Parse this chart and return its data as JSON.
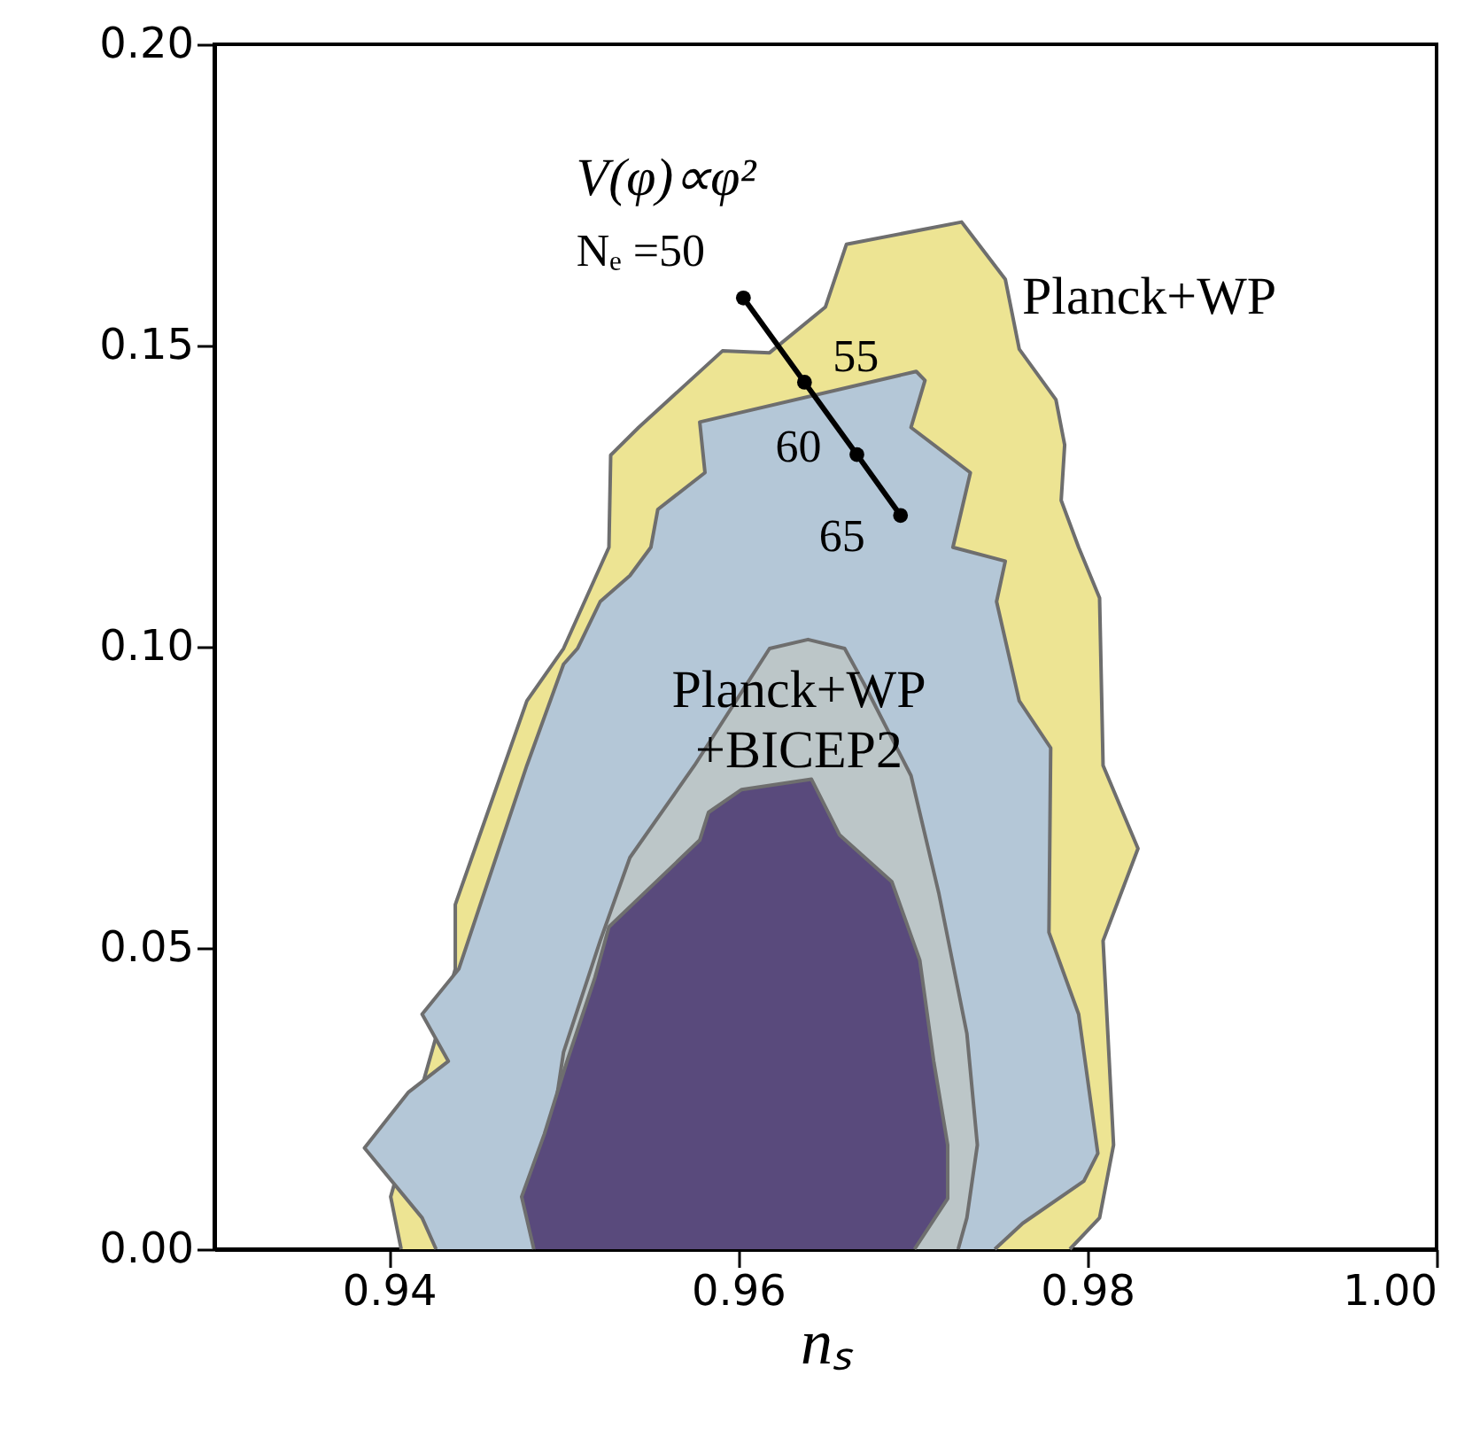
{
  "chart_data": {
    "type": "line",
    "xlabel": "nₛ",
    "xlim": [
      0.93,
      1.0
    ],
    "xticks": [
      0.94,
      0.96,
      0.98,
      {
        "value": 1.0,
        "label": "1.00"
      }
    ],
    "ylim": [
      0,
      0.2
    ],
    "yticks": [
      {
        "value": 0,
        "label": "0.00"
      },
      0.05,
      {
        "value": 0.1,
        "label": "0.10"
      },
      0.15,
      {
        "value": 0.2,
        "label": "0.20"
      }
    ],
    "series": [
      {
        "name": "Planck+WP",
        "type": "area",
        "color": "#ede493",
        "x": [
          0.9407,
          0.9401,
          0.9438,
          0.9438,
          0.9451,
          0.9479,
          0.95,
          0.9526,
          0.9527,
          0.9543,
          0.9591,
          0.9618,
          0.965,
          0.9662,
          0.9728,
          0.9753,
          0.9761,
          0.9782,
          0.9787,
          0.9785,
          0.9795,
          0.9807,
          0.9809,
          0.9829,
          0.9809,
          0.9815,
          0.9807,
          0.979
        ],
        "values": [
          0,
          0.0087,
          0.0465,
          0.0572,
          0.0679,
          0.091,
          0.0997,
          0.1165,
          0.1318,
          0.1364,
          0.1491,
          0.1488,
          0.1564,
          0.1668,
          0.1705,
          0.161,
          0.1494,
          0.141,
          0.1335,
          0.1243,
          0.1165,
          0.1081,
          0.0803,
          0.0665,
          0.0512,
          0.0173,
          0.0052,
          0
        ]
      },
      {
        "name": "Planck+WP\n+BICEP2",
        "type": "area",
        "color": "#b4c7d7",
        "x": [
          0.9427,
          0.9419,
          0.9386,
          0.9411,
          0.9434,
          0.9419,
          0.944,
          0.9456,
          0.9479,
          0.95,
          0.9508,
          0.9521,
          0.9538,
          0.955,
          0.9554,
          0.9581,
          0.9578,
          0.9702,
          0.9707,
          0.9699,
          0.9733,
          0.9723,
          0.9753,
          0.9748,
          0.9761,
          0.9779,
          0.9778,
          0.9795,
          0.9806,
          0.9798,
          0.9763,
          0.9747
        ],
        "values": [
          0,
          0.0052,
          0.0168,
          0.026,
          0.0312,
          0.039,
          0.0465,
          0.0604,
          0.0803,
          0.0971,
          0.0997,
          0.1075,
          0.1118,
          0.1165,
          0.1228,
          0.1289,
          0.1373,
          0.1457,
          0.1442,
          0.1364,
          0.1289,
          0.1165,
          0.1142,
          0.1075,
          0.091,
          0.0832,
          0.0526,
          0.039,
          0.0159,
          0.0113,
          0.0043,
          0
        ]
      },
      {
        "type": "area",
        "color": "#bcc6c8",
        "x": [
          0.9483,
          0.95,
          0.9521,
          0.9538,
          0.9575,
          0.9618,
          0.964,
          0.9661,
          0.9672,
          0.9699,
          0.9715,
          0.9731,
          0.9737,
          0.9731,
          0.9726
        ],
        "values": [
          0,
          0.0327,
          0.0512,
          0.065,
          0.0803,
          0.0997,
          0.1012,
          0.0997,
          0.0939,
          0.0786,
          0.059,
          0.0358,
          0.0173,
          0.0052,
          0
        ]
      },
      {
        "type": "area",
        "color": "#594a7c",
        "x": [
          0.9483,
          0.9476,
          0.9489,
          0.9502,
          0.9518,
          0.9526,
          0.9578,
          0.9583,
          0.9602,
          0.9642,
          0.9658,
          0.9688,
          0.9704,
          0.9712,
          0.972,
          0.972,
          0.9701
        ],
        "values": [
          0,
          0.0087,
          0.0191,
          0.0312,
          0.0451,
          0.0535,
          0.0679,
          0.0725,
          0.0763,
          0.078,
          0.0688,
          0.061,
          0.048,
          0.0312,
          0.0173,
          0.0084,
          0
        ]
      },
      {
        "type": "line",
        "color": "#000000",
        "marker": "circle",
        "x": [
          0.9603,
          0.9638,
          0.9668,
          0.9693
        ],
        "values": [
          0.1579,
          0.1439,
          0.1319,
          0.1218
        ]
      }
    ],
    "annotations": [
      "V(φ)∝φ²",
      {
        "text": "Nₑ =50",
        "x": 0.9603,
        "y": 0.1579
      },
      {
        "text": "55",
        "x": 0.9638,
        "y": 0.1439
      },
      {
        "text": "60",
        "x": 0.9668,
        "y": 0.1319
      },
      {
        "text": "65",
        "x": 0.9693,
        "y": 0.1218
      }
    ]
  }
}
